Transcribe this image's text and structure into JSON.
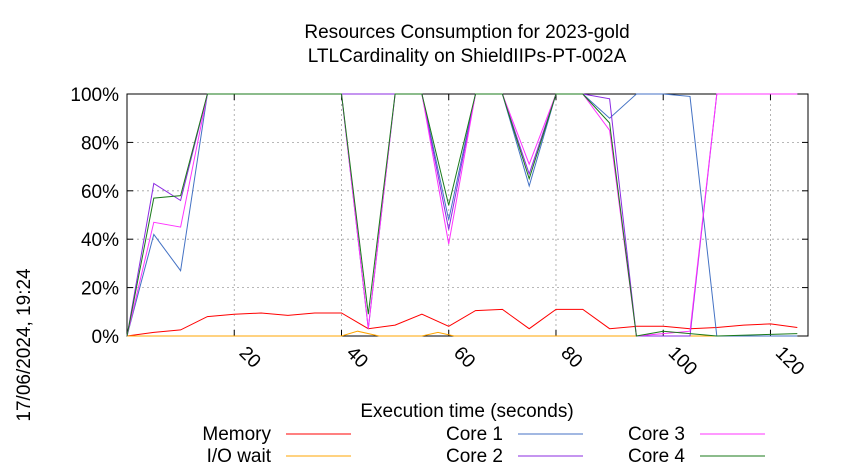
{
  "chart_data": {
    "type": "line",
    "title": [
      "Resources Consumption for 2023-gold",
      "LTLCardinality on ShieldIIPs-PT-002A"
    ],
    "xlabel": "Execution time (seconds)",
    "ylabel": "",
    "timestamp": "17/06/2024, 19:24",
    "xlim": [
      0,
      127
    ],
    "ylim": [
      0,
      100
    ],
    "xticks": [
      20,
      40,
      60,
      80,
      100,
      120
    ],
    "yticks": [
      0,
      20,
      40,
      60,
      80,
      100
    ],
    "ytick_suffix": "%",
    "grid": true,
    "legend_position": "bottom",
    "series": [
      {
        "name": "Memory",
        "color": "#ff0000",
        "points": [
          [
            0,
            0
          ],
          [
            5,
            1.5
          ],
          [
            10,
            2.5
          ],
          [
            15,
            8
          ],
          [
            20,
            9
          ],
          [
            25,
            9.5
          ],
          [
            30,
            8.5
          ],
          [
            35,
            9.5
          ],
          [
            40,
            9.5
          ],
          [
            45,
            3
          ],
          [
            50,
            4.5
          ],
          [
            55,
            9
          ],
          [
            60,
            4
          ],
          [
            65,
            10.5
          ],
          [
            70,
            11
          ],
          [
            75,
            3
          ],
          [
            80,
            11
          ],
          [
            85,
            11
          ],
          [
            90,
            3
          ],
          [
            95,
            4
          ],
          [
            100,
            4
          ],
          [
            105,
            3
          ],
          [
            110,
            3.5
          ],
          [
            115,
            4.5
          ],
          [
            120,
            5
          ],
          [
            125,
            3.5
          ]
        ]
      },
      {
        "name": "I/O wait",
        "color": "#ffa500",
        "points": [
          [
            0,
            0
          ],
          [
            40,
            0
          ],
          [
            43,
            2
          ],
          [
            47,
            0
          ],
          [
            55,
            0
          ],
          [
            58,
            1.5
          ],
          [
            61,
            0
          ],
          [
            125,
            0
          ]
        ]
      },
      {
        "name": "Core 1",
        "color": "#4472c4",
        "points": [
          [
            0,
            0
          ],
          [
            5,
            42
          ],
          [
            10,
            27
          ],
          [
            15,
            100
          ],
          [
            20,
            100
          ],
          [
            40,
            100
          ],
          [
            45,
            3
          ],
          [
            50,
            100
          ],
          [
            55,
            100
          ],
          [
            60,
            48
          ],
          [
            65,
            100
          ],
          [
            70,
            100
          ],
          [
            75,
            62
          ],
          [
            80,
            100
          ],
          [
            85,
            100
          ],
          [
            90,
            90
          ],
          [
            95,
            100
          ],
          [
            100,
            100
          ],
          [
            105,
            99
          ],
          [
            110,
            0
          ],
          [
            125,
            0
          ]
        ]
      },
      {
        "name": "Core 2",
        "color": "#8b2be2",
        "points": [
          [
            0,
            0
          ],
          [
            5,
            63
          ],
          [
            10,
            56
          ],
          [
            15,
            100
          ],
          [
            20,
            100
          ],
          [
            40,
            100
          ],
          [
            45,
            100
          ],
          [
            50,
            100
          ],
          [
            55,
            100
          ],
          [
            60,
            44
          ],
          [
            65,
            100
          ],
          [
            70,
            100
          ],
          [
            75,
            67
          ],
          [
            80,
            100
          ],
          [
            85,
            100
          ],
          [
            90,
            98
          ],
          [
            95,
            0
          ],
          [
            100,
            0
          ],
          [
            105,
            0
          ],
          [
            110,
            100
          ],
          [
            125,
            100
          ]
        ]
      },
      {
        "name": "Core 3",
        "color": "#ff33ff",
        "points": [
          [
            0,
            0
          ],
          [
            5,
            47
          ],
          [
            10,
            45
          ],
          [
            15,
            100
          ],
          [
            20,
            100
          ],
          [
            40,
            100
          ],
          [
            45,
            3
          ],
          [
            50,
            100
          ],
          [
            55,
            100
          ],
          [
            60,
            38
          ],
          [
            65,
            100
          ],
          [
            70,
            100
          ],
          [
            75,
            71
          ],
          [
            80,
            100
          ],
          [
            85,
            100
          ],
          [
            90,
            85
          ],
          [
            95,
            0
          ],
          [
            100,
            1
          ],
          [
            105,
            2
          ],
          [
            110,
            100
          ],
          [
            125,
            100
          ]
        ]
      },
      {
        "name": "Core 4",
        "color": "#1a7a1a",
        "points": [
          [
            0,
            0
          ],
          [
            5,
            57
          ],
          [
            10,
            58
          ],
          [
            15,
            100
          ],
          [
            20,
            100
          ],
          [
            40,
            100
          ],
          [
            45,
            9
          ],
          [
            50,
            100
          ],
          [
            55,
            100
          ],
          [
            60,
            54
          ],
          [
            65,
            100
          ],
          [
            70,
            100
          ],
          [
            75,
            65
          ],
          [
            80,
            100
          ],
          [
            85,
            100
          ],
          [
            90,
            88
          ],
          [
            95,
            0
          ],
          [
            100,
            2
          ],
          [
            105,
            1
          ],
          [
            110,
            0
          ],
          [
            125,
            1
          ]
        ]
      }
    ]
  }
}
